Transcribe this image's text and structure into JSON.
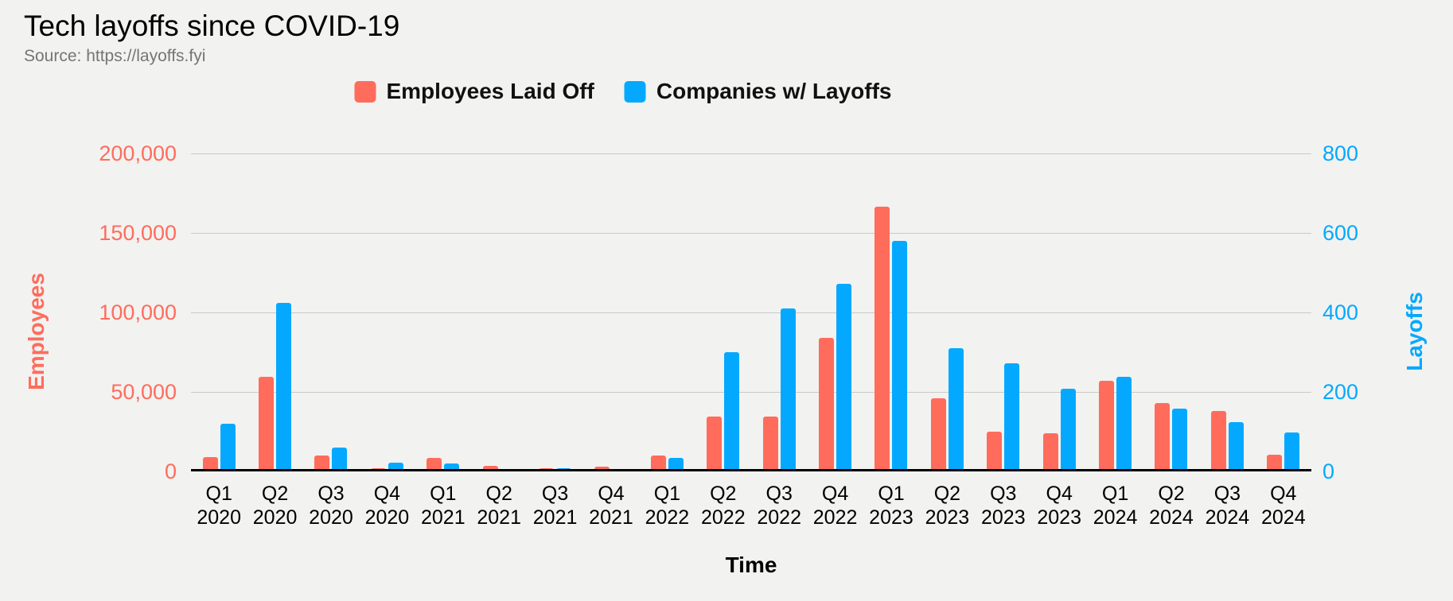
{
  "header": {
    "title": "Tech layoffs since COVID-19",
    "source": "Source: https://layoffs.fyi"
  },
  "legend": {
    "items": [
      {
        "label": "Employees Laid Off",
        "color": "#ff6c5c"
      },
      {
        "label": "Companies w/ Layoffs",
        "color": "#04a9ff"
      }
    ]
  },
  "chart_data": {
    "type": "bar",
    "title": "Tech layoffs since COVID-19",
    "subtitle": "Source: https://layoffs.fyi",
    "categories": [
      {
        "quarter": "Q1",
        "year": "2020"
      },
      {
        "quarter": "Q2",
        "year": "2020"
      },
      {
        "quarter": "Q3",
        "year": "2020"
      },
      {
        "quarter": "Q4",
        "year": "2020"
      },
      {
        "quarter": "Q1",
        "year": "2021"
      },
      {
        "quarter": "Q2",
        "year": "2021"
      },
      {
        "quarter": "Q3",
        "year": "2021"
      },
      {
        "quarter": "Q4",
        "year": "2021"
      },
      {
        "quarter": "Q1",
        "year": "2022"
      },
      {
        "quarter": "Q2",
        "year": "2022"
      },
      {
        "quarter": "Q3",
        "year": "2022"
      },
      {
        "quarter": "Q4",
        "year": "2022"
      },
      {
        "quarter": "Q1",
        "year": "2023"
      },
      {
        "quarter": "Q2",
        "year": "2023"
      },
      {
        "quarter": "Q3",
        "year": "2023"
      },
      {
        "quarter": "Q4",
        "year": "2023"
      },
      {
        "quarter": "Q1",
        "year": "2024"
      },
      {
        "quarter": "Q2",
        "year": "2024"
      },
      {
        "quarter": "Q3",
        "year": "2024"
      },
      {
        "quarter": "Q4",
        "year": "2024"
      }
    ],
    "series": [
      {
        "name": "Employees Laid Off",
        "axis": "left",
        "color": "#ff6c5c",
        "values": [
          9000,
          59500,
          10000,
          2000,
          8500,
          3300,
          2200,
          3000,
          10000,
          34500,
          34600,
          84000,
          166500,
          46000,
          25000,
          24000,
          57000,
          43000,
          38000,
          10500
        ]
      },
      {
        "name": "Companies w/ Layoffs",
        "axis": "right",
        "color": "#04a9ff",
        "values": [
          120,
          425,
          60,
          22,
          20,
          5,
          8,
          7,
          35,
          300,
          410,
          472,
          580,
          310,
          272,
          208,
          238,
          158,
          125,
          98
        ]
      }
    ],
    "left_axis": {
      "title": "Employees",
      "color": "#ff6c5c",
      "max": 200000,
      "min": 0,
      "tick_labels": [
        "200,000",
        "150,000",
        "100,000",
        "50,000",
        "0"
      ]
    },
    "right_axis": {
      "title": "Layoffs",
      "color": "#04a9ff",
      "max": 800,
      "min": 0,
      "tick_labels": [
        "800",
        "600",
        "400",
        "200",
        "0"
      ]
    },
    "x_axis": {
      "title": "Time"
    },
    "grid": true,
    "legend_position": "top"
  }
}
